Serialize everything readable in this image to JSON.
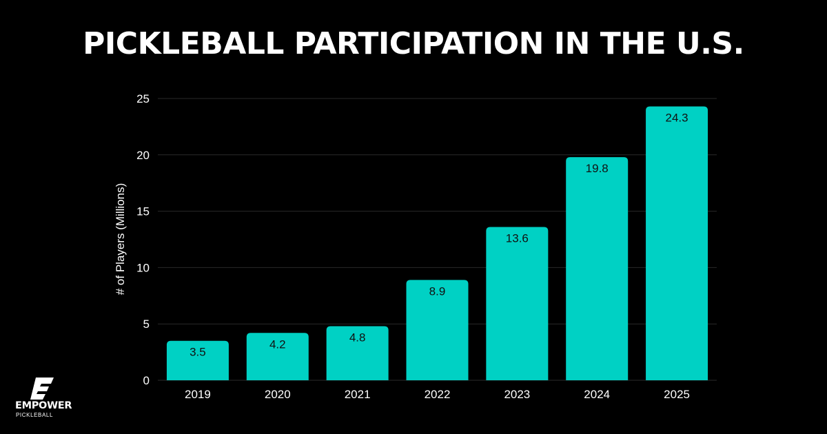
{
  "colors": {
    "background": "#000000",
    "bar": "#00d1c4",
    "text": "#ffffff",
    "label": "#111111",
    "grid": "#2a2a2a"
  },
  "brand": {
    "name": "EMPOWER",
    "sub": "PICKLEBALL",
    "icon": "empower-e-logo-icon"
  },
  "chart_data": {
    "type": "bar",
    "title": "PICKLEBALL PARTICIPATION IN THE U.S.",
    "xlabel": "",
    "ylabel": "# of Players (Millions)",
    "categories": [
      "2019",
      "2020",
      "2021",
      "2022",
      "2023",
      "2024",
      "2025"
    ],
    "values": [
      3.5,
      4.2,
      4.8,
      8.9,
      13.6,
      19.8,
      24.3
    ],
    "data_labels": [
      "3.5",
      "4.2",
      "4.8",
      "8.9",
      "13.6",
      "19.8",
      "24.3"
    ],
    "ylim": [
      0,
      25
    ],
    "yticks": [
      0,
      5,
      10,
      15,
      20,
      25
    ],
    "ytick_labels": [
      "0",
      "5",
      "10",
      "15",
      "20",
      "25"
    ],
    "grid": true,
    "legend": "none"
  }
}
